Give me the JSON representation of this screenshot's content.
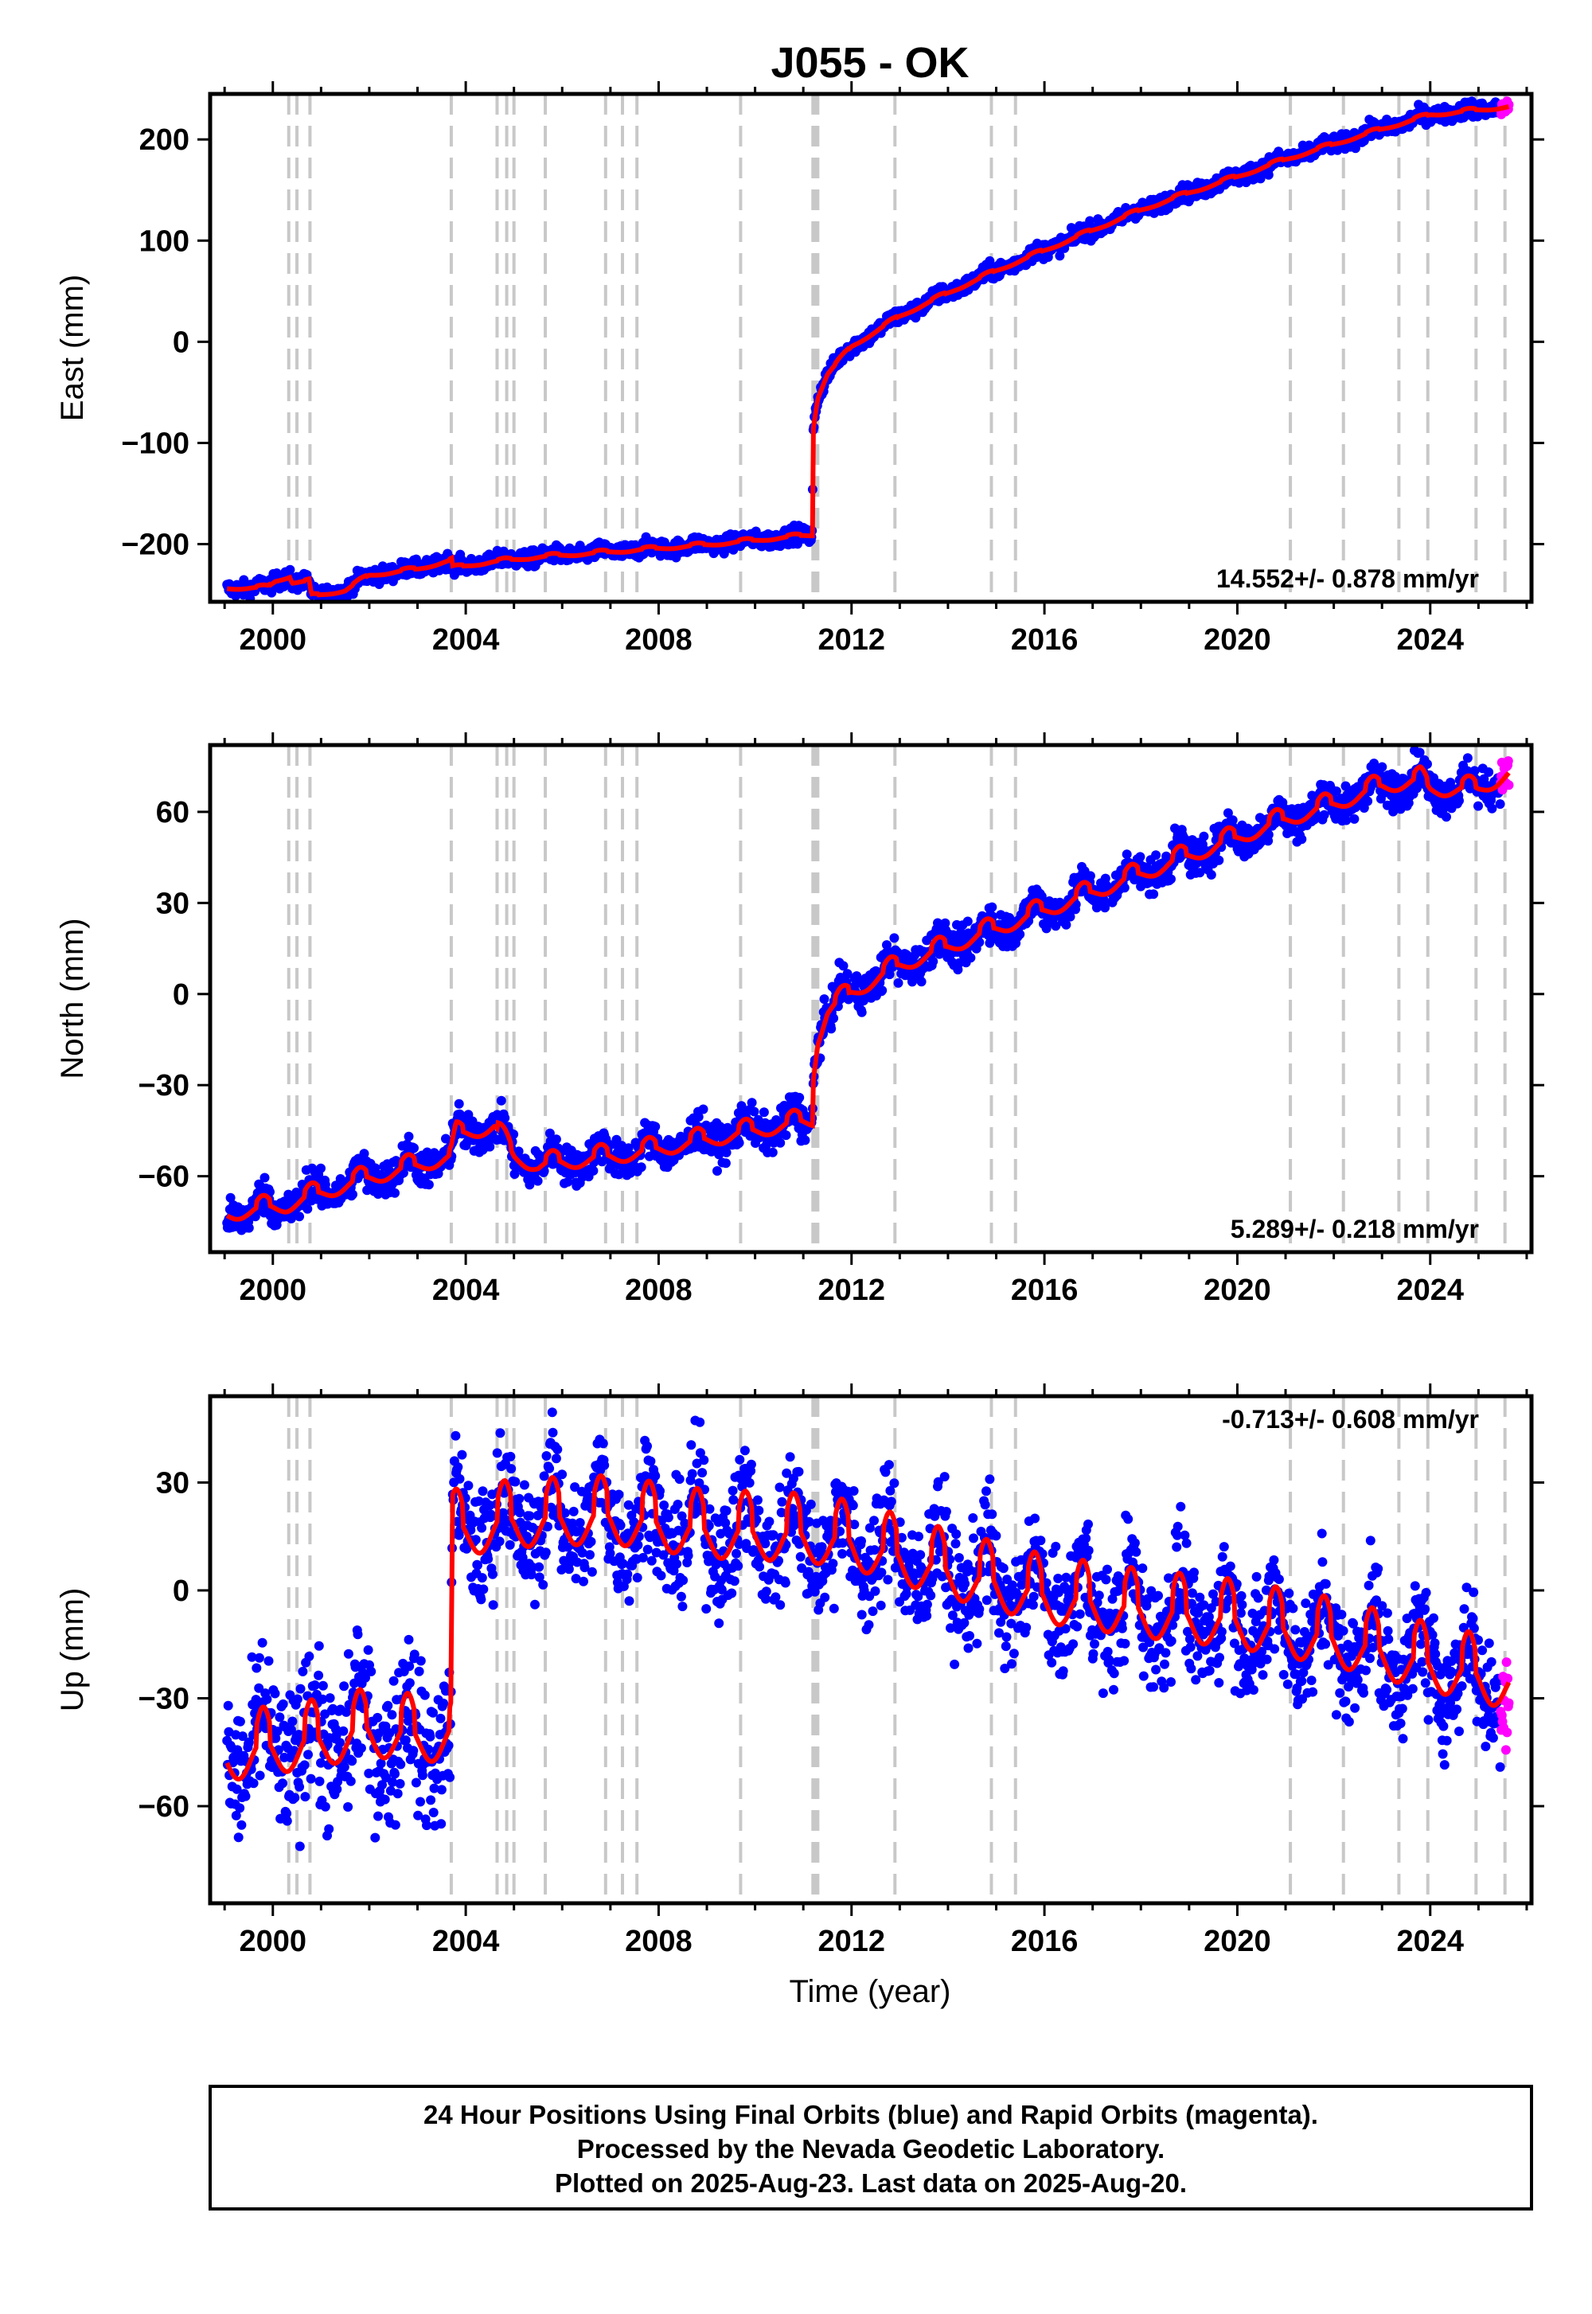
{
  "title": "J055 - OK",
  "xlabel": "Time (year)",
  "footer": [
    "24 Hour Positions Using Final Orbits (blue) and Rapid Orbits (magenta).",
    "Processed by the Nevada Geodetic Laboratory.",
    "Plotted on 2025-Aug-23. Last data on 2025-Aug-20."
  ],
  "colors": {
    "final_orbits": "#0000ff",
    "rapid_orbits": "#ff00ff",
    "model": "#ff0000",
    "event_lines": "#c8c8c8"
  },
  "chart_data": {
    "type": "scatter",
    "x_ticks": [
      "2000",
      "2004",
      "2008",
      "2012",
      "2016",
      "2020",
      "2024"
    ],
    "xlim": [
      1998.7,
      2026.1
    ],
    "data_start": 1999.05,
    "data_end": 2025.63,
    "rapid_start": 2025.45,
    "event_lines": [
      2000.33,
      2000.5,
      2000.77,
      2003.7,
      2004.65,
      2004.85,
      2005.0,
      2005.65,
      2006.9,
      2007.25,
      2007.55,
      2009.7,
      2011.2,
      2011.25,
      2011.3,
      2012.9,
      2014.9,
      2015.4,
      2021.1,
      2022.2,
      2023.35,
      2023.95,
      2024.95,
      2025.55
    ],
    "panels": [
      {
        "ylabel": "East (mm)",
        "y_ticks": [
          "200",
          "100",
          "0",
          "−100",
          "−200"
        ],
        "y_tick_values": [
          200,
          100,
          0,
          -100,
          -200
        ],
        "ylim": [
          -257,
          245
        ],
        "rate": "14.552+/- 0.878 mm/yr",
        "rate_position": "bottom-right",
        "model_x": [
          1999.05,
          1999.9,
          2000.05,
          2000.35,
          2000.4,
          2000.75,
          2000.8,
          2001.5,
          2002.0,
          2003.0,
          2003.55,
          2003.72,
          2003.73,
          2004.5,
          2005.5,
          2007.0,
          2009.0,
          2011.19,
          2011.2,
          2011.3,
          2011.5,
          2012.0,
          2013.0,
          2014.0,
          2015.0,
          2016.0,
          2017.0,
          2018.0,
          2019.0,
          2020.0,
          2021.0,
          2022.0,
          2023.0,
          2024.0,
          2025.63
        ],
        "model_y": [
          -244,
          -243,
          -237,
          -232,
          -238,
          -237,
          -252,
          -246,
          -231,
          -225,
          -218,
          -216,
          -224,
          -218,
          -213,
          -208,
          -201,
          -191,
          -88,
          -55,
          -32,
          -5,
          25,
          48,
          70,
          90,
          110,
          130,
          147,
          163,
          180,
          195,
          210,
          224,
          232
        ],
        "scatter_noise": 4,
        "seasonal_amp": 2
      },
      {
        "ylabel": "North (mm)",
        "y_ticks": [
          "60",
          "30",
          "0",
          "−30",
          "−60"
        ],
        "y_tick_values": [
          60,
          30,
          0,
          -30,
          -60
        ],
        "ylim": [
          -85,
          82
        ],
        "rate": "5.289+/- 0.218 mm/yr",
        "rate_position": "bottom-right",
        "model_x": [
          1999.05,
          2000.3,
          2001.0,
          2002.0,
          2003.0,
          2003.7,
          2003.8,
          2004.6,
          2005.0,
          2005.5,
          2006.5,
          2007.5,
          2008.5,
          2009.5,
          2010.5,
          2011.19,
          2011.2,
          2011.3,
          2011.5,
          2012.0,
          2013.0,
          2014.0,
          2015.0,
          2016.0,
          2017.0,
          2018.0,
          2019.0,
          2020.0,
          2021.0,
          2022.0,
          2023.0,
          2023.8,
          2024.0,
          2025.0,
          2025.63
        ],
        "model_y": [
          -73,
          -70,
          -66,
          -61,
          -57,
          -54,
          -47,
          -44,
          -54,
          -57,
          -55,
          -53,
          -50,
          -47,
          -44,
          -42,
          -28,
          -15,
          -6,
          0,
          9,
          15,
          21,
          27,
          33,
          39,
          45,
          51,
          57,
          62,
          68,
          70,
          67,
          67,
          72
        ],
        "scatter_noise": 3,
        "seasonal_amp": 3.5
      },
      {
        "ylabel": "Up (mm)",
        "y_ticks": [
          "30",
          "0",
          "−30",
          "−60"
        ],
        "y_tick_values": [
          30,
          0,
          -30,
          -60
        ],
        "ylim": [
          -87,
          54
        ],
        "rate": "-0.713+/- 0.608 mm/yr",
        "rate_position": "top-right",
        "model_x": [
          1999.05,
          2000.0,
          2001.0,
          2002.0,
          2003.0,
          2003.7,
          2003.72,
          2005.0,
          2007.0,
          2009.0,
          2011.0,
          2012.0,
          2014.0,
          2016.0,
          2018.0,
          2020.0,
          2022.0,
          2024.0,
          2025.63
        ],
        "model_y": [
          -48,
          -46,
          -44,
          -41,
          -43,
          -42,
          14,
          17,
          18,
          14,
          13,
          11,
          3,
          -4,
          -8,
          -11,
          -16,
          -23,
          -28
        ],
        "scatter_noise": 8,
        "seasonal_amp": 10
      }
    ]
  }
}
